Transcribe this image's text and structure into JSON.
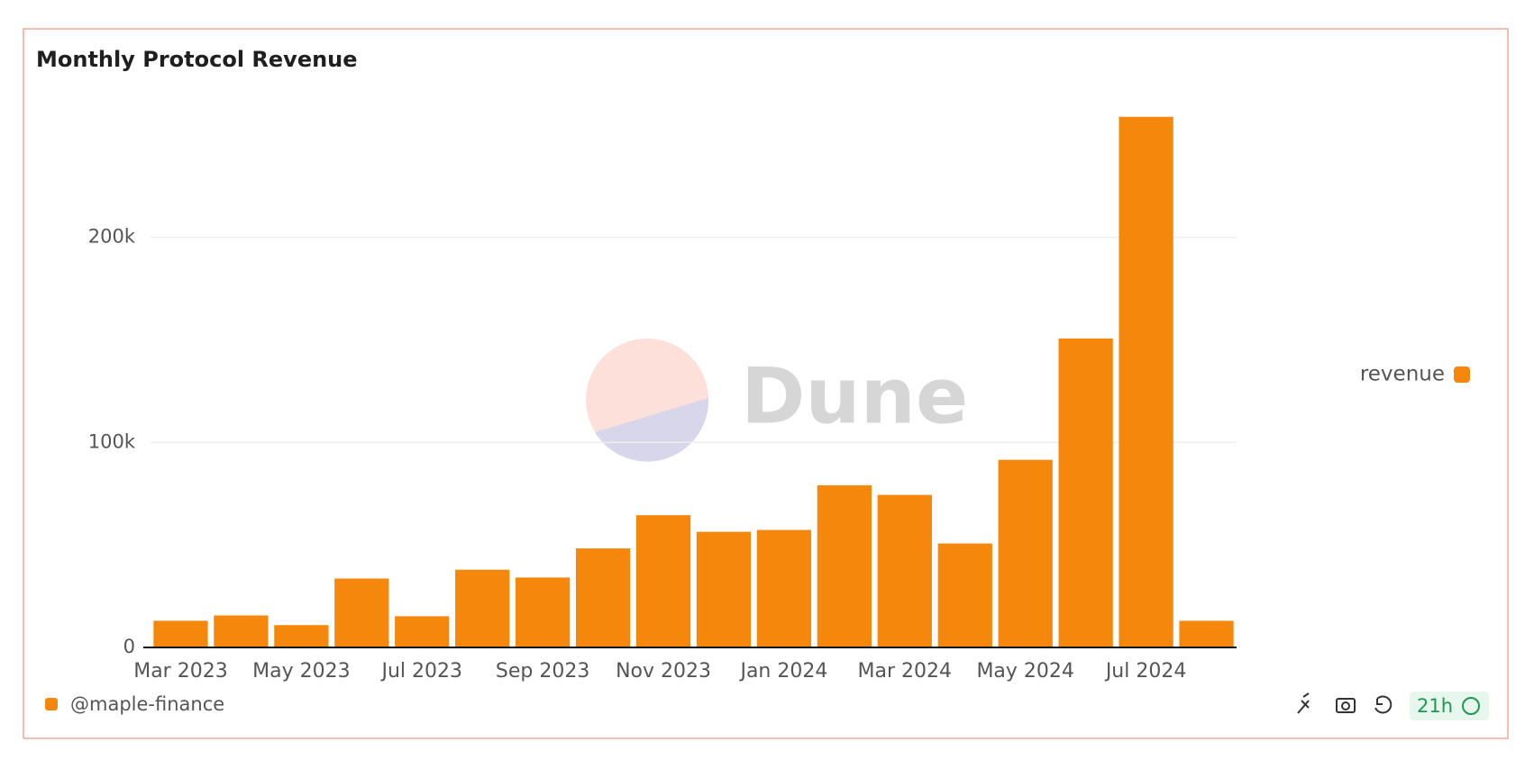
{
  "chart_data": {
    "type": "bar",
    "title": "Monthly Protocol Revenue",
    "categories": [
      "Mar 2023",
      null,
      "May 2023",
      null,
      "Jul 2023",
      null,
      "Sep 2023",
      null,
      "Nov 2023",
      null,
      "Jan 2024",
      null,
      "Mar 2024",
      null,
      "May 2024",
      null,
      "Jul 2024",
      null
    ],
    "series": [
      {
        "name": "revenue",
        "color": "#f5880c",
        "values": [
          13000,
          15600,
          10900,
          33600,
          15200,
          37900,
          34100,
          48300,
          64500,
          56400,
          57300,
          79100,
          74400,
          50700,
          91500,
          150700,
          258800,
          13000
        ]
      }
    ],
    "ylim": [
      0,
      260000
    ],
    "yticks": [
      0,
      {
        "value": 100000,
        "label": "100k"
      },
      {
        "value": 200000,
        "label": "200k"
      }
    ],
    "grid": true,
    "legend": "right",
    "watermark": "Dune"
  },
  "footer": {
    "author": "@maple-finance",
    "age": "21h"
  }
}
